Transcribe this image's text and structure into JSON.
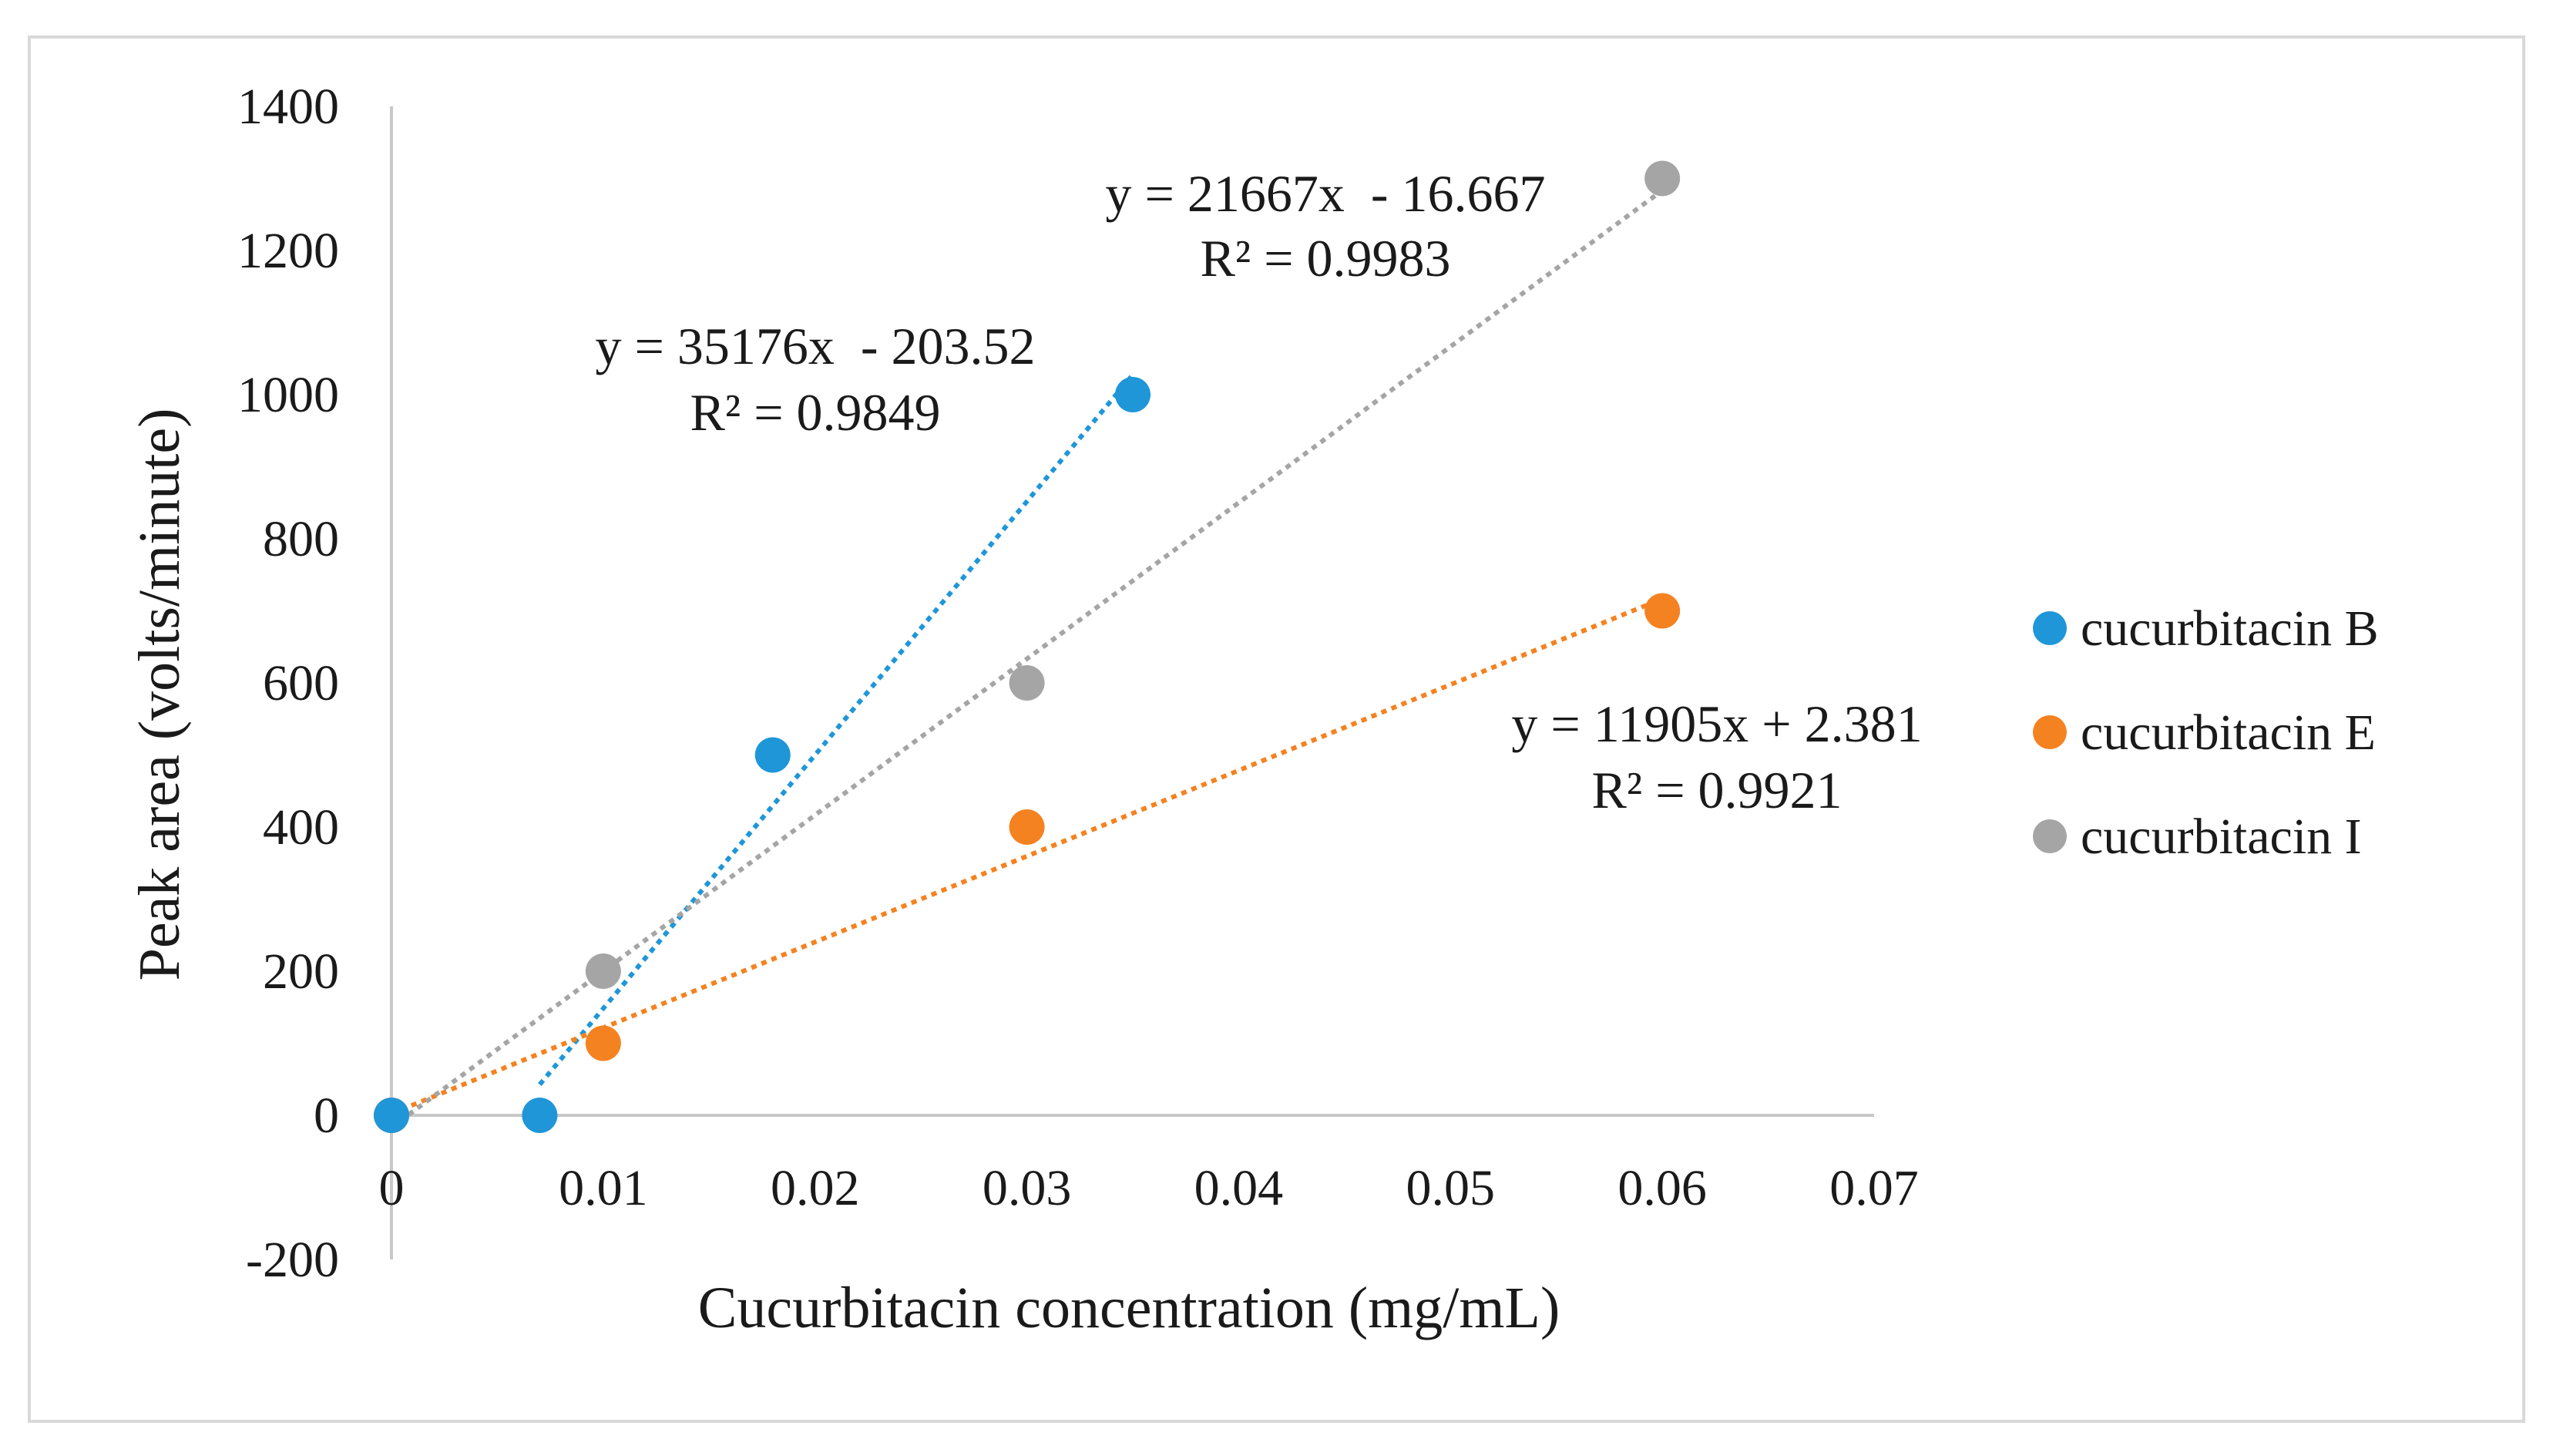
{
  "chart_data": {
    "type": "scatter",
    "title": "",
    "xlabel": "Cucurbitacin concentration (mg/mL)",
    "ylabel": "Peak area (volts/minute)",
    "xlim": [
      0,
      0.07
    ],
    "ylim": [
      -200,
      1400
    ],
    "x_ticks": [
      "0",
      "0.01",
      "0.02",
      "0.03",
      "0.04",
      "0.05",
      "0.06",
      "0.07"
    ],
    "y_ticks": [
      "-200",
      "0",
      "200",
      "400",
      "600",
      "800",
      "1000",
      "1200",
      "1400"
    ],
    "grid": false,
    "legend_position": "right",
    "series": [
      {
        "name": "cucurbitacin B",
        "color": "#1f96d8",
        "points": [
          [
            0,
            0
          ],
          [
            0.007,
            0
          ],
          [
            0.018,
            500
          ],
          [
            0.035,
            1000
          ]
        ],
        "trendline": {
          "x_range": [
            0.007,
            0.035
          ],
          "equation": "y = 35176x  - 203.52",
          "r2": "R² = 0.9849"
        }
      },
      {
        "name": "cucurbitacin E",
        "color": "#f58220",
        "points": [
          [
            0,
            0
          ],
          [
            0.01,
            100
          ],
          [
            0.03,
            400
          ],
          [
            0.06,
            700
          ]
        ],
        "trendline": {
          "x_range": [
            0,
            0.06
          ],
          "equation": "y = 11905x + 2.381",
          "r2": "R² = 0.9921"
        }
      },
      {
        "name": "cucurbitacin I",
        "color": "#a5a5a5",
        "points": [
          [
            0,
            0
          ],
          [
            0.01,
            200
          ],
          [
            0.03,
            600
          ],
          [
            0.06,
            1300
          ]
        ],
        "trendline": {
          "x_range": [
            0,
            0.06
          ],
          "equation": "y = 21667x  - 16.667",
          "r2": "R² = 0.9983"
        }
      }
    ]
  }
}
